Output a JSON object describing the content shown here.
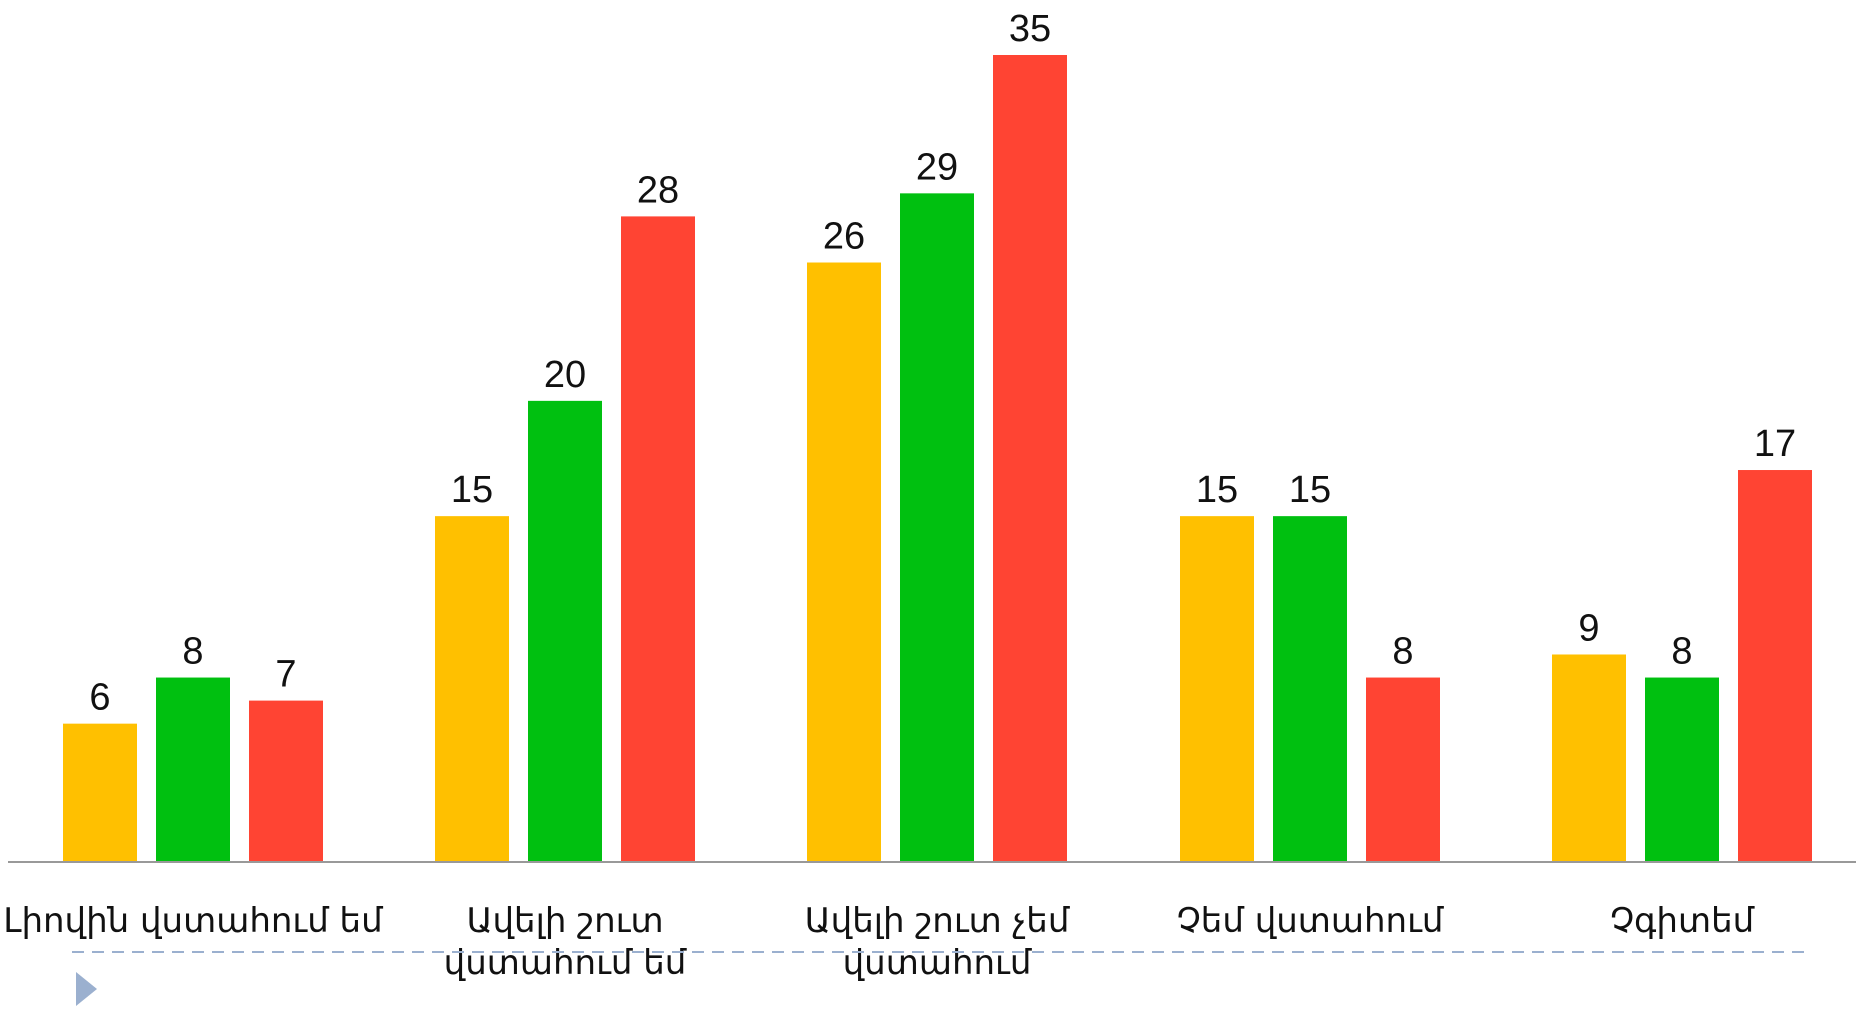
{
  "chart_data": {
    "type": "bar",
    "categories": [
      [
        "Լիովին վստահում եմ"
      ],
      [
        "Ավելի շուտ",
        "վստահում եմ"
      ],
      [
        "Ավելի շուտ չեմ",
        "վստահում"
      ],
      [
        "Չեմ վստահում"
      ],
      [
        "Չգիտեմ"
      ]
    ],
    "series": [
      {
        "color": "#FFC000",
        "values": [
          6,
          15,
          26,
          15,
          9
        ]
      },
      {
        "color": "#00C010",
        "values": [
          8,
          20,
          29,
          15,
          8
        ]
      },
      {
        "color": "#FF4433",
        "values": [
          7,
          28,
          35,
          8,
          17
        ]
      }
    ],
    "ylim": [
      0,
      35
    ],
    "data_labels": true,
    "legend": "none",
    "grid": false,
    "axis_color": "#999999",
    "decor_line_color": "#9BB0CF",
    "marker_color": "#9BB0CF"
  }
}
